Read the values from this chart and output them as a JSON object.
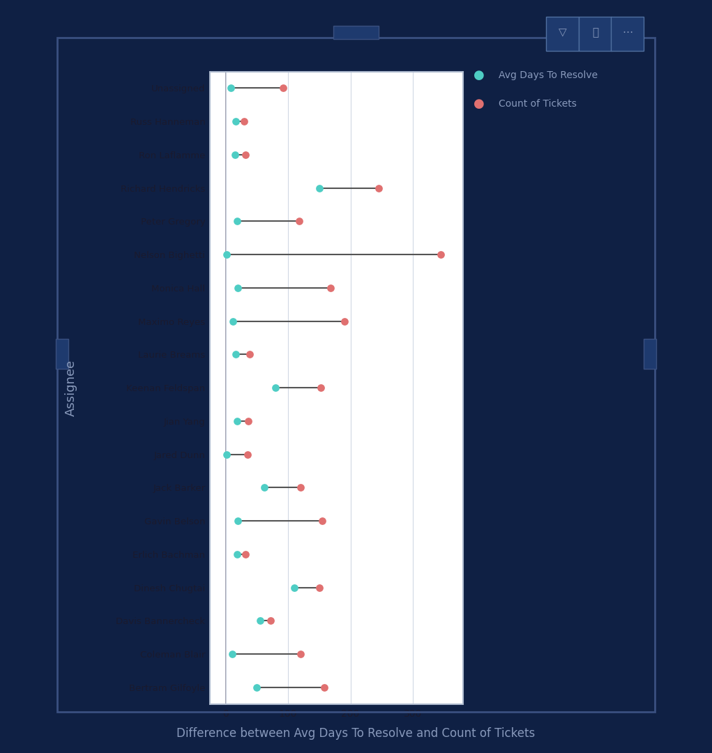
{
  "assignees": [
    "Unassigned",
    "Russ Hanneman",
    "Ron Laflamme",
    "Richard Hendricks",
    "Peter Gregory",
    "Nelson Bighetti",
    "Monica Hall",
    "Maximo Reyes",
    "Laurie Breams",
    "Keenan Feldspan",
    "Jian Yang",
    "Jared Dunn",
    "Jack Barker",
    "Gavin Belson",
    "Erlich Bachman",
    "Dinesh Chugtai",
    "Davis Bannercheck",
    "Coleman Blair",
    "Bertram Gilfoyle"
  ],
  "avg_days": [
    8,
    16,
    15,
    150,
    18,
    2,
    20,
    12,
    16,
    80,
    18,
    2,
    62,
    20,
    18,
    110,
    55,
    10,
    50
  ],
  "count_tickets": [
    92,
    30,
    32,
    245,
    118,
    345,
    168,
    190,
    38,
    152,
    36,
    35,
    120,
    155,
    32,
    150,
    72,
    120,
    158
  ],
  "color_avg": "#4ecdc4",
  "color_count": "#e07070",
  "line_color": "#555555",
  "bg_outer": "#0f2044",
  "bg_plot": "#ffffff",
  "bg_plot_border": "#b0bcd0",
  "xlabel": "Difference between Avg Days To Resolve and Count of Tickets",
  "ylabel": "Assignee",
  "legend_avg": "Avg Days To Resolve",
  "legend_count": "Count of Tickets",
  "xlim": [
    -25,
    380
  ],
  "xticks": [
    0,
    100,
    200,
    300
  ],
  "label_color": "#8899bb",
  "tick_color": "#1a1a2e",
  "grid_color": "#d0d8e4"
}
